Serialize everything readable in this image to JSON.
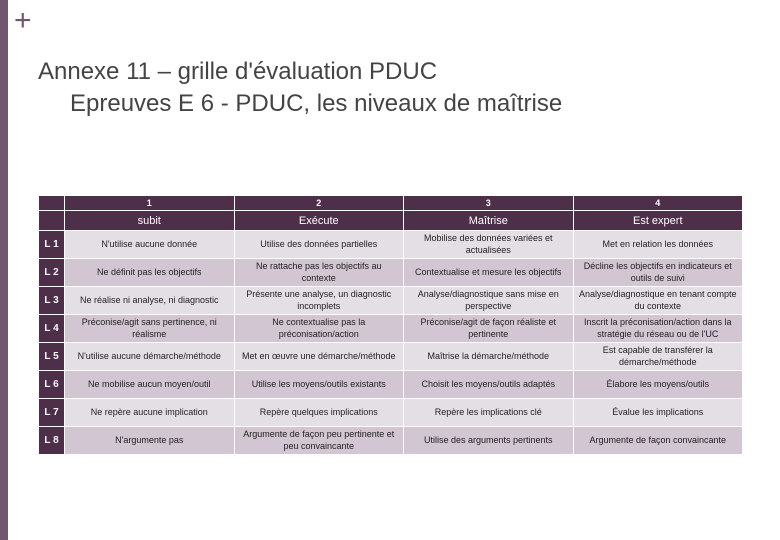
{
  "accent_plus": "+",
  "title": {
    "line1": "Annexe 11 – grille d'évaluation PDUC",
    "line2": "Epreuves E 6 - PDUC, les niveaux de maîtrise"
  },
  "colors": {
    "brand": "#715670",
    "table_header_bg": "#4e2f4a",
    "row_even_bg": "#e4dee5",
    "row_odd_bg": "#d1c6d1",
    "text_dark": "#222222",
    "text_grey": "#444444",
    "border": "#ffffff"
  },
  "table": {
    "level_numbers": [
      "1",
      "2",
      "3",
      "4"
    ],
    "level_labels": [
      "subit",
      "Exécute",
      "Maîtrise",
      "Est expert"
    ],
    "row_labels": [
      "L 1",
      "L 2",
      "L 3",
      "L 4",
      "L 5",
      "L 6",
      "L 7",
      "L 8"
    ],
    "rows": [
      [
        "N'utilise aucune donnée",
        "Utilise des données partielles",
        "Mobilise des données variées et actualisées",
        "Met en relation les données"
      ],
      [
        "Ne définit pas les objectifs",
        "Ne rattache pas les objectifs au contexte",
        "Contextualise et mesure les objectifs",
        "Décline les objectifs en indicateurs et outils de suivi"
      ],
      [
        "Ne réalise ni analyse, ni diagnostic",
        "Présente une analyse, un diagnostic incomplets",
        "Analyse/diagnostique sans mise en perspective",
        "Analyse/diagnostique en tenant compte du contexte"
      ],
      [
        "Préconise/agit sans pertinence, ni réalisme",
        "Ne contextualise pas la préconisation/action",
        "Préconise/agit de façon réaliste et pertinente",
        "Inscrit la préconisation/action dans la stratégie du réseau ou de l'UC"
      ],
      [
        "N'utilise aucune démarche/méthode",
        "Met en œuvre une démarche/méthode",
        "Maîtrise la démarche/méthode",
        "Est capable de transférer la démarche/méthode"
      ],
      [
        "Ne mobilise aucun moyen/outil",
        "Utilise les moyens/outils existants",
        "Choisit les moyens/outils adaptés",
        "Élabore les moyens/outils"
      ],
      [
        "Ne repère aucune implication",
        "Repère quelques implications",
        "Repère les implications clé",
        "Évalue les implications"
      ],
      [
        "N'argumente pas",
        "Argumente de façon peu pertinente et peu convaincante",
        "Utilise des arguments pertinents",
        "Argumente de façon convaincante"
      ]
    ]
  }
}
